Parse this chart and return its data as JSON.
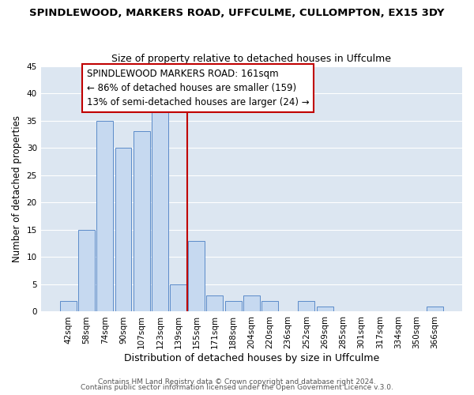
{
  "title": "SPINDLEWOOD, MARKERS ROAD, UFFCULME, CULLOMPTON, EX15 3DY",
  "subtitle": "Size of property relative to detached houses in Uffculme",
  "xlabel": "Distribution of detached houses by size in Uffculme",
  "ylabel": "Number of detached properties",
  "bar_labels": [
    "42sqm",
    "58sqm",
    "74sqm",
    "90sqm",
    "107sqm",
    "123sqm",
    "139sqm",
    "155sqm",
    "171sqm",
    "188sqm",
    "204sqm",
    "220sqm",
    "236sqm",
    "252sqm",
    "269sqm",
    "285sqm",
    "301sqm",
    "317sqm",
    "334sqm",
    "350sqm",
    "366sqm"
  ],
  "bar_values": [
    2,
    15,
    35,
    30,
    33,
    37,
    5,
    13,
    3,
    2,
    3,
    2,
    0,
    2,
    1,
    0,
    0,
    0,
    0,
    0,
    1
  ],
  "bar_color": "#c6d9f0",
  "bar_edge_color": "#5b8bc9",
  "grid_color": "#ffffff",
  "bg_color": "#dce6f1",
  "vline_color": "#c00000",
  "vline_pos": 6.5,
  "annotation_lines": [
    "SPINDLEWOOD MARKERS ROAD: 161sqm",
    "← 86% of detached houses are smaller (159)",
    "13% of semi-detached houses are larger (24) →"
  ],
  "annotation_box_color": "#ffffff",
  "annotation_box_edge_color": "#c00000",
  "ylim": [
    0,
    45
  ],
  "yticks": [
    0,
    5,
    10,
    15,
    20,
    25,
    30,
    35,
    40,
    45
  ],
  "footer_lines": [
    "Contains HM Land Registry data © Crown copyright and database right 2024.",
    "Contains public sector information licensed under the Open Government Licence v.3.0."
  ],
  "title_fontsize": 9.5,
  "subtitle_fontsize": 9,
  "xlabel_fontsize": 9,
  "ylabel_fontsize": 8.5,
  "tick_fontsize": 7.5,
  "annotation_fontsize": 8.5,
  "footer_fontsize": 6.5
}
